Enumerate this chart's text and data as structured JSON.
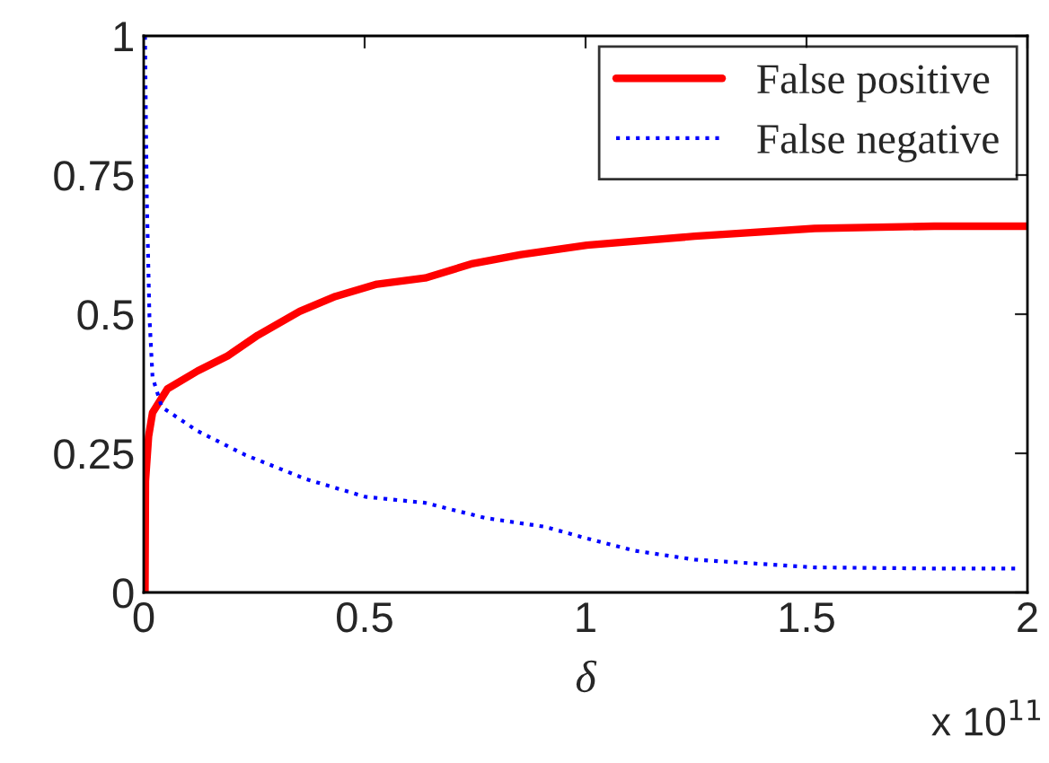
{
  "chart_data": {
    "type": "line",
    "xlabel": "δ",
    "annotations": [
      "x 10$^{11}$"
    ],
    "xlim": [
      0,
      2
    ],
    "ylim": [
      0,
      1
    ],
    "xticks": [
      0,
      0.5,
      1,
      1.5,
      2
    ],
    "yticks": [
      0,
      0.25,
      0.5,
      0.75,
      1
    ],
    "grid": false,
    "legend": "top right",
    "series": [
      {
        "name": "False positive",
        "color": "#ff0000",
        "line_style": "solid",
        "x": [
          0.003,
          0.004,
          0.011,
          0.02,
          0.054,
          0.122,
          0.19,
          0.258,
          0.353,
          0.434,
          0.528,
          0.637,
          0.745,
          0.854,
          1.003,
          1.247,
          1.518,
          1.789,
          2.0
        ],
        "values": [
          0,
          0.2,
          0.28,
          0.323,
          0.366,
          0.398,
          0.425,
          0.462,
          0.505,
          0.532,
          0.554,
          0.565,
          0.591,
          0.607,
          0.624,
          0.64,
          0.654,
          0.658,
          0.658
        ]
      },
      {
        "name": "False negative",
        "color": "#0000ff",
        "line_style": "dotted",
        "x": [
          0.003,
          0.007,
          0.013,
          0.02,
          0.041,
          0.122,
          0.23,
          0.366,
          0.501,
          0.637,
          0.772,
          0.908,
          1.003,
          1.111,
          1.247,
          1.518,
          1.789,
          1.978
        ],
        "values": [
          1.0,
          0.71,
          0.495,
          0.387,
          0.333,
          0.29,
          0.247,
          0.204,
          0.172,
          0.161,
          0.134,
          0.118,
          0.097,
          0.075,
          0.059,
          0.045,
          0.043,
          0.043
        ]
      }
    ]
  }
}
